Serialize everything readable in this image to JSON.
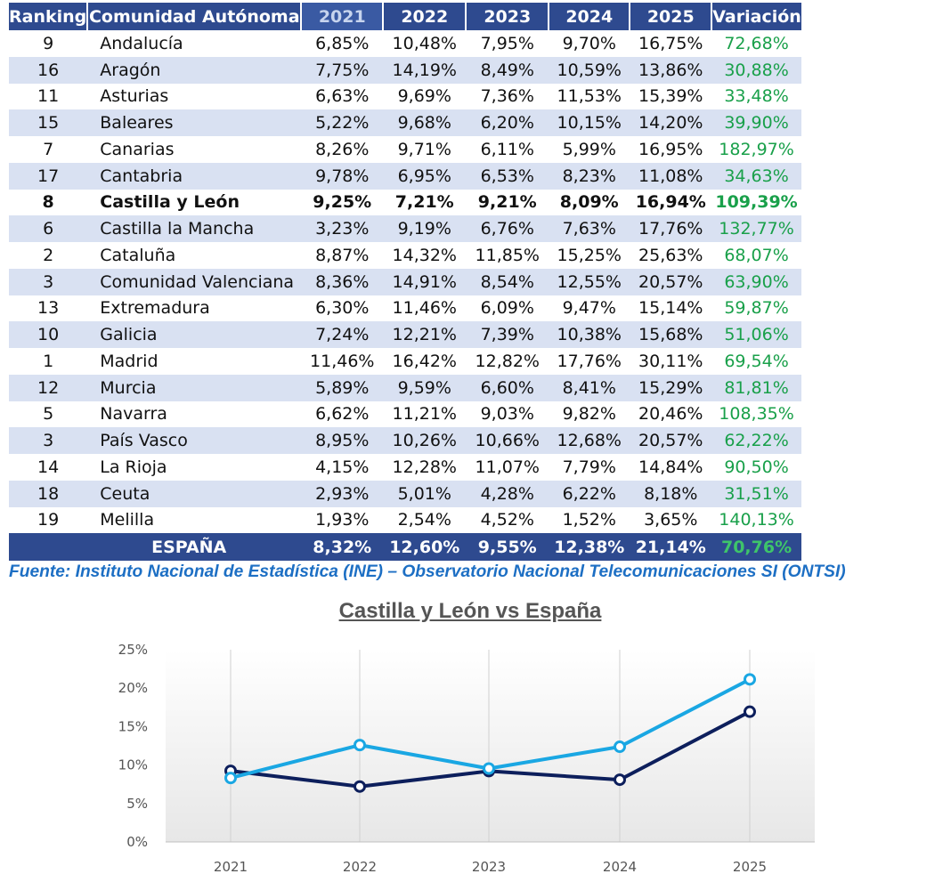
{
  "table": {
    "headers": {
      "ranking": "Ranking",
      "region": "Comunidad Autónoma",
      "years": [
        "2021",
        "2022",
        "2023",
        "2024",
        "2025"
      ],
      "variation": "Variación"
    },
    "rows": [
      {
        "rank": "9",
        "region": "Andalucía",
        "values": [
          "6,85%",
          "10,48%",
          "7,95%",
          "9,70%",
          "16,75%"
        ],
        "variation": "72,68%"
      },
      {
        "rank": "16",
        "region": "Aragón",
        "values": [
          "7,75%",
          "14,19%",
          "8,49%",
          "10,59%",
          "13,86%"
        ],
        "variation": "30,88%"
      },
      {
        "rank": "11",
        "region": "Asturias",
        "values": [
          "6,63%",
          "9,69%",
          "7,36%",
          "11,53%",
          "15,39%"
        ],
        "variation": "33,48%"
      },
      {
        "rank": "15",
        "region": "Baleares",
        "values": [
          "5,22%",
          "9,68%",
          "6,20%",
          "10,15%",
          "14,20%"
        ],
        "variation": "39,90%"
      },
      {
        "rank": "7",
        "region": "Canarias",
        "values": [
          "8,26%",
          "9,71%",
          "6,11%",
          "5,99%",
          "16,95%"
        ],
        "variation": "182,97%"
      },
      {
        "rank": "17",
        "region": "Cantabria",
        "values": [
          "9,78%",
          "6,95%",
          "6,53%",
          "8,23%",
          "11,08%"
        ],
        "variation": "34,63%"
      },
      {
        "rank": "8",
        "region": "Castilla y León",
        "values": [
          "9,25%",
          "7,21%",
          "9,21%",
          "8,09%",
          "16,94%"
        ],
        "variation": "109,39%",
        "highlight": true
      },
      {
        "rank": "6",
        "region": "Castilla la Mancha",
        "values": [
          "3,23%",
          "9,19%",
          "6,76%",
          "7,63%",
          "17,76%"
        ],
        "variation": "132,77%"
      },
      {
        "rank": "2",
        "region": "Cataluña",
        "values": [
          "8,87%",
          "14,32%",
          "11,85%",
          "15,25%",
          "25,63%"
        ],
        "variation": "68,07%"
      },
      {
        "rank": "3",
        "region": "Comunidad Valenciana",
        "values": [
          "8,36%",
          "14,91%",
          "8,54%",
          "12,55%",
          "20,57%"
        ],
        "variation": "63,90%"
      },
      {
        "rank": "13",
        "region": "Extremadura",
        "values": [
          "6,30%",
          "11,46%",
          "6,09%",
          "9,47%",
          "15,14%"
        ],
        "variation": "59,87%"
      },
      {
        "rank": "10",
        "region": "Galicia",
        "values": [
          "7,24%",
          "12,21%",
          "7,39%",
          "10,38%",
          "15,68%"
        ],
        "variation": "51,06%"
      },
      {
        "rank": "1",
        "region": "Madrid",
        "values": [
          "11,46%",
          "16,42%",
          "12,82%",
          "17,76%",
          "30,11%"
        ],
        "variation": "69,54%"
      },
      {
        "rank": "12",
        "region": "Murcia",
        "values": [
          "5,89%",
          "9,59%",
          "6,60%",
          "8,41%",
          "15,29%"
        ],
        "variation": "81,81%"
      },
      {
        "rank": "5",
        "region": "Navarra",
        "values": [
          "6,62%",
          "11,21%",
          "9,03%",
          "9,82%",
          "20,46%"
        ],
        "variation": "108,35%"
      },
      {
        "rank": "3",
        "region": "País Vasco",
        "values": [
          "8,95%",
          "10,26%",
          "10,66%",
          "12,68%",
          "20,57%"
        ],
        "variation": "62,22%"
      },
      {
        "rank": "14",
        "region": "La Rioja",
        "values": [
          "4,15%",
          "12,28%",
          "11,07%",
          "7,79%",
          "14,84%"
        ],
        "variation": "90,50%"
      },
      {
        "rank": "18",
        "region": "Ceuta",
        "values": [
          "2,93%",
          "5,01%",
          "4,28%",
          "6,22%",
          "8,18%"
        ],
        "variation": "31,51%"
      },
      {
        "rank": "19",
        "region": "Melilla",
        "values": [
          "1,93%",
          "2,54%",
          "4,52%",
          "1,52%",
          "3,65%"
        ],
        "variation": "140,13%"
      }
    ],
    "total": {
      "label": "ESPAÑA",
      "values": [
        "8,32%",
        "12,60%",
        "9,55%",
        "12,38%",
        "21,14%"
      ],
      "variation": "70,76%"
    }
  },
  "source": "Fuente: Instituto Nacional de Estadística (INE) – Observatorio Nacional Telecomunicaciones SI (ONTSI)",
  "colors": {
    "header_bg": "#2e4a8f",
    "alt_row_bg": "#d9e1f2",
    "variation_text": "#19a04a",
    "source_text": "#1d6fc4",
    "series_castilla": "#0d1f5c",
    "series_espana": "#1aa7e3"
  },
  "chart_data": {
    "type": "line",
    "title": "Castilla y León vs España",
    "x": [
      "2021",
      "2022",
      "2023",
      "2024",
      "2025"
    ],
    "series": [
      {
        "values": [
          9.25,
          7.21,
          9.21,
          8.09,
          16.94
        ],
        "color": "#0d1f5c"
      },
      {
        "values": [
          8.32,
          12.6,
          9.55,
          12.38,
          21.14
        ],
        "color": "#1aa7e3"
      }
    ],
    "ylim": [
      0,
      25
    ],
    "yticks": [
      "0%",
      "5%",
      "10%",
      "15%",
      "20%",
      "25%"
    ],
    "xlabel": "",
    "ylabel": "",
    "grid": "vertical",
    "legend": "none"
  }
}
